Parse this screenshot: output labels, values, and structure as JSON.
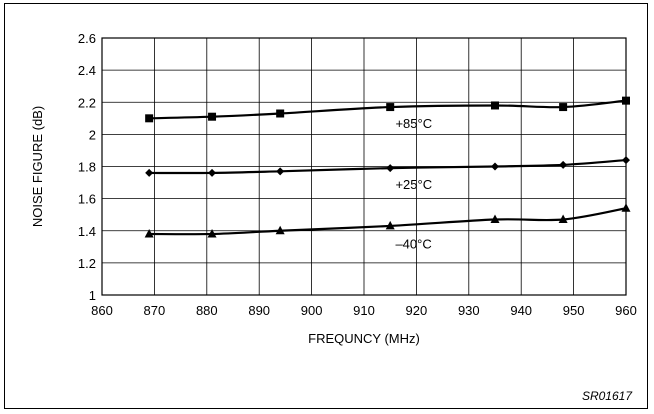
{
  "figure_id": "SR01617",
  "chart_data": {
    "type": "line",
    "xlabel": "FREQUNCY (MHz)",
    "ylabel": "NOISE FIGURE (dB)",
    "xlim": [
      860,
      960
    ],
    "ylim": [
      1,
      2.6
    ],
    "xticks": [
      860,
      870,
      880,
      890,
      900,
      910,
      920,
      930,
      940,
      950,
      960
    ],
    "yticks": [
      1,
      1.2,
      1.4,
      1.6,
      1.8,
      2,
      2.2,
      2.4,
      2.6
    ],
    "ytick_labels": [
      "1",
      "1.2",
      "1.4",
      "1.6",
      "1.8",
      "2",
      "2.2",
      "2.4",
      "2.6"
    ],
    "grid": true,
    "series": [
      {
        "name": "+85°C",
        "marker": "square",
        "x": [
          869,
          881,
          894,
          915,
          935,
          948,
          960
        ],
        "y": [
          2.1,
          2.11,
          2.13,
          2.17,
          2.18,
          2.17,
          2.21
        ],
        "label_at": [
          916,
          2.07
        ]
      },
      {
        "name": "+25°C",
        "marker": "diamond",
        "x": [
          869,
          881,
          894,
          915,
          935,
          948,
          960
        ],
        "y": [
          1.76,
          1.76,
          1.77,
          1.79,
          1.8,
          1.81,
          1.84
        ],
        "label_at": [
          916,
          1.69
        ]
      },
      {
        "name": "–40°C",
        "marker": "triangle",
        "x": [
          869,
          881,
          894,
          915,
          935,
          948,
          960
        ],
        "y": [
          1.38,
          1.38,
          1.4,
          1.43,
          1.47,
          1.47,
          1.54
        ],
        "label_at": [
          916,
          1.32
        ]
      }
    ]
  }
}
